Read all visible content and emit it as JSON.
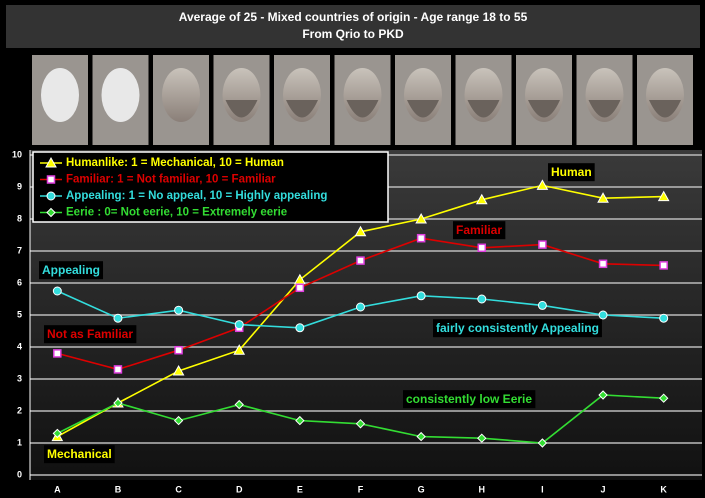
{
  "chart_data": {
    "type": "line",
    "title": "Average of 25 - Mixed countries of origin - Age range 18 to 55",
    "subtitle": "From Qrio to PKD",
    "categories": [
      "A",
      "B",
      "C",
      "D",
      "E",
      "F",
      "G",
      "H",
      "I",
      "J",
      "K"
    ],
    "series": [
      {
        "name": "Humanlike: 1 = Mechanical, 10 = Human",
        "color": "#ffff00",
        "marker": "triangle",
        "values": [
          1.2,
          2.25,
          3.25,
          3.9,
          6.1,
          7.6,
          8.0,
          8.6,
          9.05,
          8.65,
          8.7
        ]
      },
      {
        "name": "Familiar: 1 = Not familiar, 10 = Familiar",
        "color": "#dd0000",
        "marker": "square",
        "values": [
          3.8,
          3.3,
          3.9,
          4.6,
          5.85,
          6.7,
          7.4,
          7.1,
          7.2,
          6.6,
          6.55
        ]
      },
      {
        "name": "Appealing: 1 = No appeal, 10 = Highly appealing",
        "color": "#33dddd",
        "marker": "circle",
        "values": [
          5.75,
          4.9,
          5.15,
          4.7,
          4.6,
          5.25,
          5.6,
          5.5,
          5.3,
          5.0,
          4.9
        ]
      },
      {
        "name": "Eerie : 0= Not eerie, 10 = Extremely eerie",
        "color": "#33dd33",
        "marker": "diamond",
        "values": [
          1.3,
          2.25,
          1.7,
          2.2,
          1.7,
          1.6,
          1.2,
          1.15,
          1.0,
          2.5,
          2.4
        ]
      }
    ],
    "annotations": [
      "Human",
      "Familiar",
      "Appealing",
      "Not as Familiar",
      "fairly consistently Appealing",
      "consistently low Eerie",
      "Mechanical"
    ],
    "ylim": [
      0,
      10
    ],
    "yticks": [
      0,
      1,
      2,
      3,
      4,
      5,
      6,
      7,
      8,
      9,
      10
    ],
    "grid": true,
    "legend": "top-left"
  }
}
